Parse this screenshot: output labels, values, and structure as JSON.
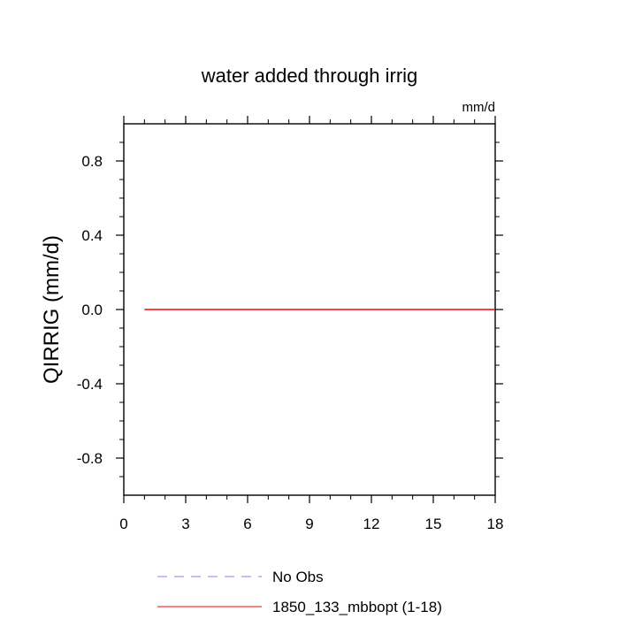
{
  "chart_data": {
    "type": "line",
    "title": "water added through irrig",
    "units_label": "mm/d",
    "ylabel": "QIRRIG  (mm/d)",
    "xlabel": "",
    "xlim": [
      0,
      18
    ],
    "ylim": [
      -1.0,
      1.0
    ],
    "x_ticks": [
      0,
      3,
      6,
      9,
      12,
      15,
      18
    ],
    "x_tick_labels": [
      "0",
      "3",
      "6",
      "9",
      "12",
      "15",
      "18"
    ],
    "y_ticks": [
      0.8,
      0.4,
      0.0,
      -0.4,
      -0.8
    ],
    "y_tick_labels": [
      "0.8",
      "0.4",
      "0.0",
      "-0.4",
      "-0.8"
    ],
    "grid": false,
    "legend_position": "bottom",
    "series": [
      {
        "name": "No Obs",
        "color": "#8080ff",
        "style": "dashed",
        "x": [],
        "y": []
      },
      {
        "name": "1850_133_mbbopt (1-18)",
        "color": "#ff0000",
        "style": "solid",
        "x": [
          1,
          2,
          3,
          4,
          5,
          6,
          7,
          8,
          9,
          10,
          11,
          12,
          13,
          14,
          15,
          16,
          17,
          18
        ],
        "y": [
          0,
          0,
          0,
          0,
          0,
          0,
          0,
          0,
          0,
          0,
          0,
          0,
          0,
          0,
          0,
          0,
          0,
          0
        ]
      }
    ]
  }
}
